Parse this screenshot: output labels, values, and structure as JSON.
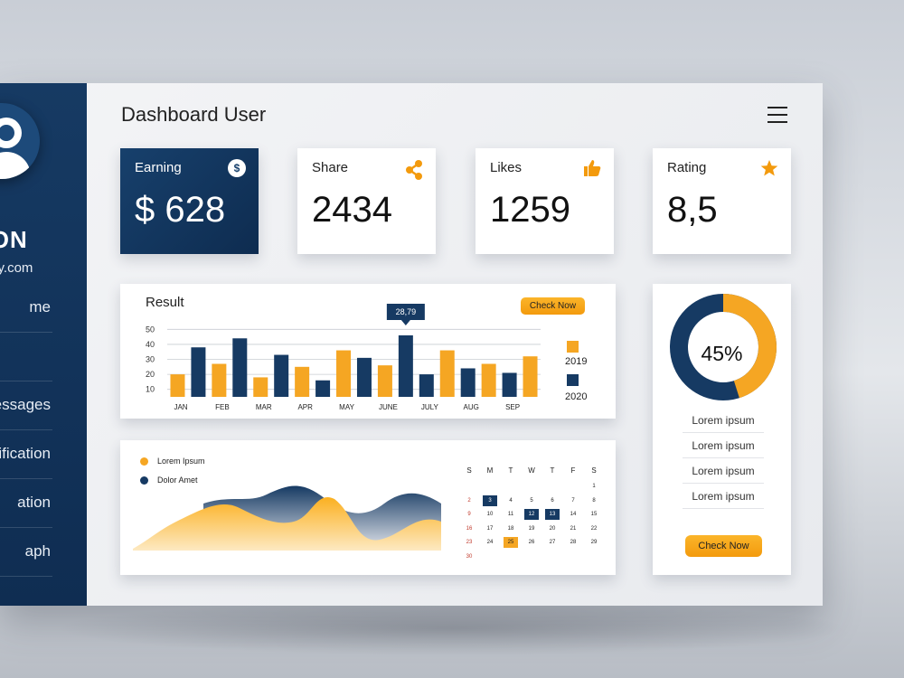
{
  "dashboard": {
    "title": "Dashboard User"
  },
  "user": {
    "name": "DON",
    "email": "mpany.com"
  },
  "nav": [
    {
      "label": "me"
    },
    {
      "label": ""
    },
    {
      "label": "essages"
    },
    {
      "label": "tification"
    },
    {
      "label": "ation"
    },
    {
      "label": "aph"
    }
  ],
  "stats": {
    "earning": {
      "label": "Earning",
      "value": "$ 628",
      "icon": "dollar-icon",
      "icon_glyph": "$"
    },
    "share": {
      "label": "Share",
      "value": "2434",
      "icon": "share-icon"
    },
    "likes": {
      "label": "Likes",
      "value": "1259",
      "icon": "thumbs-up-icon"
    },
    "rating": {
      "label": "Rating",
      "value": "8,5",
      "icon": "star-icon"
    }
  },
  "result": {
    "title": "Result",
    "button": "Check Now",
    "tooltip": "28,79"
  },
  "colors": {
    "orange": "#f5a623",
    "navy": "#163a63"
  },
  "chart_data": {
    "type": "bar",
    "categories": [
      "JAN",
      "",
      "FEB",
      "",
      "MAR",
      "",
      "APR",
      "",
      "MAY",
      "",
      "JUNE",
      "",
      "JULY",
      "",
      "AUG",
      "",
      "SEP"
    ],
    "series": [
      {
        "name": "2019",
        "color": "#f5a623",
        "values": [
          null,
          null,
          null,
          null,
          null,
          null,
          null,
          null,
          null,
          null,
          null,
          null,
          null,
          null,
          null,
          null,
          null
        ]
      },
      {
        "name": "2020",
        "color": "#163a63",
        "values": [
          null,
          null,
          null,
          null,
          null,
          null,
          null,
          null,
          null,
          null,
          null,
          null,
          null,
          null,
          null,
          null,
          null
        ]
      }
    ],
    "bars": [
      {
        "v": 20,
        "s": 0
      },
      {
        "v": 38,
        "s": 1
      },
      {
        "v": 27,
        "s": 0
      },
      {
        "v": 44,
        "s": 1
      },
      {
        "v": 18,
        "s": 0
      },
      {
        "v": 33,
        "s": 1
      },
      {
        "v": 25,
        "s": 0
      },
      {
        "v": 16,
        "s": 1
      },
      {
        "v": 36,
        "s": 0
      },
      {
        "v": 31,
        "s": 1
      },
      {
        "v": 26,
        "s": 0
      },
      {
        "v": 46,
        "s": 1
      },
      {
        "v": 20,
        "s": 1
      },
      {
        "v": 36,
        "s": 0
      },
      {
        "v": 24,
        "s": 1
      },
      {
        "v": 27,
        "s": 0
      },
      {
        "v": 21,
        "s": 1
      },
      {
        "v": 32,
        "s": 0
      }
    ],
    "month_labels": [
      "JAN",
      "FEB",
      "MAR",
      "APR",
      "MAY",
      "JUNE",
      "JULY",
      "AUG",
      "SEP"
    ],
    "yticks": [
      10,
      20,
      30,
      40,
      50
    ],
    "ylim": [
      5,
      52
    ],
    "legend": [
      "2019",
      "2020"
    ]
  },
  "wave": {
    "legend": [
      {
        "label": "Lorem Ipsum",
        "color": "#f5a623"
      },
      {
        "label": "Dolor Amet",
        "color": "#163a63"
      }
    ]
  },
  "calendar": {
    "headers": [
      "S",
      "M",
      "T",
      "W",
      "T",
      "F",
      "S"
    ],
    "rows": [
      [
        "",
        "",
        "",
        "",
        "",
        "",
        "1"
      ],
      [
        "2",
        "3",
        "4",
        "5",
        "6",
        "7",
        "8"
      ],
      [
        "9",
        "10",
        "11",
        "12",
        "13",
        "14",
        "15"
      ],
      [
        "16",
        "17",
        "18",
        "19",
        "20",
        "21",
        "22"
      ],
      [
        "23",
        "24",
        "25",
        "26",
        "27",
        "28",
        "29"
      ],
      [
        "30",
        "",
        "",
        "",
        "",
        "",
        ""
      ]
    ],
    "highlight_blue": [
      "3",
      "12",
      "13"
    ],
    "highlight_orange": [
      "25"
    ]
  },
  "donut": {
    "value": 45,
    "label": "45%"
  },
  "side_list": [
    "Lorem ipsum",
    "Lorem ipsum",
    "Lorem ipsum",
    "Lorem ipsum"
  ],
  "side_button": "Check Now"
}
